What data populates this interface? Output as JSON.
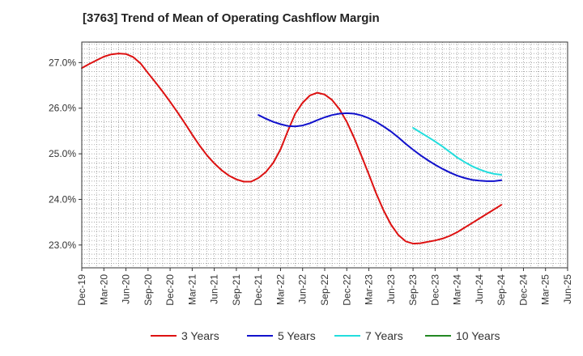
{
  "chart_data": {
    "type": "line",
    "title": "[3763]  Trend of Mean of Operating Cashflow Margin",
    "xlabel": "",
    "ylabel": "",
    "y_tick_labels": [
      "23.0%",
      "24.0%",
      "25.0%",
      "26.0%",
      "27.0%"
    ],
    "y_ticks": [
      23.0,
      24.0,
      25.0,
      26.0,
      27.0
    ],
    "ylim": [
      22.5,
      27.45
    ],
    "x_tick_labels": [
      "Dec-19",
      "Mar-20",
      "Jun-20",
      "Sep-20",
      "Dec-20",
      "Mar-21",
      "Jun-21",
      "Sep-21",
      "Dec-21",
      "Mar-22",
      "Jun-22",
      "Sep-22",
      "Dec-22",
      "Mar-23",
      "Jun-23",
      "Sep-23",
      "Dec-23",
      "Mar-24",
      "Jun-24",
      "Sep-24",
      "Dec-24",
      "Mar-25",
      "Jun-25"
    ],
    "grid": true,
    "legend_position": "bottom",
    "series": [
      {
        "name": "3 Years",
        "color": "#dd1111",
        "x": [
          "Dec-19",
          "Jan-20",
          "Feb-20",
          "Mar-20",
          "Apr-20",
          "May-20",
          "Jun-20",
          "Jul-20",
          "Aug-20",
          "Sep-20",
          "Oct-20",
          "Nov-20",
          "Dec-20",
          "Jan-21",
          "Feb-21",
          "Mar-21",
          "Apr-21",
          "May-21",
          "Jun-21",
          "Jul-21",
          "Aug-21",
          "Sep-21",
          "Oct-21",
          "Nov-21",
          "Dec-21",
          "Jan-22",
          "Feb-22",
          "Mar-22",
          "Apr-22",
          "May-22",
          "Jun-22",
          "Jul-22",
          "Aug-22",
          "Sep-22",
          "Oct-22",
          "Nov-22",
          "Dec-22",
          "Jan-23",
          "Feb-23",
          "Mar-23",
          "Apr-23",
          "May-23",
          "Jun-23",
          "Jul-23",
          "Aug-23",
          "Sep-23",
          "Oct-23",
          "Nov-23",
          "Dec-23",
          "Jan-24",
          "Feb-24",
          "Mar-24",
          "Apr-24",
          "May-24",
          "Jun-24",
          "Jul-24",
          "Aug-24",
          "Sep-24"
        ],
        "values": [
          26.88,
          26.97,
          27.05,
          27.13,
          27.18,
          27.2,
          27.19,
          27.12,
          26.98,
          26.77,
          26.57,
          26.36,
          26.14,
          25.91,
          25.67,
          25.42,
          25.18,
          24.97,
          24.79,
          24.64,
          24.52,
          24.44,
          24.39,
          24.39,
          24.47,
          24.6,
          24.8,
          25.1,
          25.5,
          25.88,
          26.12,
          26.28,
          26.34,
          26.3,
          26.18,
          25.98,
          25.7,
          25.35,
          24.95,
          24.55,
          24.13,
          23.76,
          23.45,
          23.22,
          23.08,
          23.03,
          23.04,
          23.07,
          23.1,
          23.14,
          23.2,
          23.28,
          23.38,
          23.48,
          23.58,
          23.68,
          23.78,
          23.88
        ]
      },
      {
        "name": "5 Years",
        "color": "#1111cc",
        "x": [
          "Dec-21",
          "Jan-22",
          "Feb-22",
          "Mar-22",
          "Apr-22",
          "May-22",
          "Jun-22",
          "Jul-22",
          "Aug-22",
          "Sep-22",
          "Oct-22",
          "Nov-22",
          "Dec-22",
          "Jan-23",
          "Feb-23",
          "Mar-23",
          "Apr-23",
          "May-23",
          "Jun-23",
          "Jul-23",
          "Aug-23",
          "Sep-23",
          "Oct-23",
          "Nov-23",
          "Dec-23",
          "Jan-24",
          "Feb-24",
          "Mar-24",
          "Apr-24",
          "May-24",
          "Jun-24",
          "Jul-24",
          "Aug-24",
          "Sep-24"
        ],
        "values": [
          25.85,
          25.77,
          25.7,
          25.65,
          25.61,
          25.6,
          25.62,
          25.67,
          25.74,
          25.8,
          25.85,
          25.88,
          25.89,
          25.88,
          25.84,
          25.78,
          25.7,
          25.6,
          25.49,
          25.36,
          25.22,
          25.09,
          24.97,
          24.86,
          24.76,
          24.67,
          24.59,
          24.52,
          24.47,
          24.43,
          24.41,
          24.4,
          24.4,
          24.42
        ]
      },
      {
        "name": "7 Years",
        "color": "#22dddd",
        "x": [
          "Sep-23",
          "Oct-23",
          "Nov-23",
          "Dec-23",
          "Jan-24",
          "Feb-24",
          "Mar-24",
          "Apr-24",
          "May-24",
          "Jun-24",
          "Jul-24",
          "Aug-24",
          "Sep-24"
        ],
        "values": [
          25.57,
          25.47,
          25.37,
          25.27,
          25.16,
          25.04,
          24.92,
          24.82,
          24.73,
          24.66,
          24.6,
          24.56,
          24.54
        ]
      },
      {
        "name": "10 Years",
        "color": "#228822",
        "x": [],
        "values": []
      }
    ]
  }
}
